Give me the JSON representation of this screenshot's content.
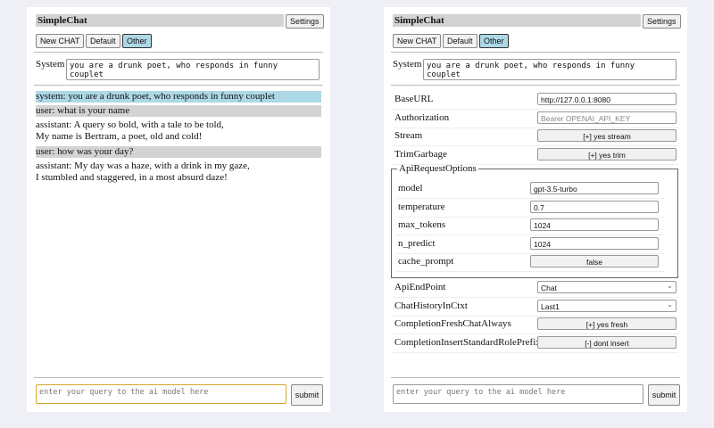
{
  "left": {
    "title": "SimpleChat",
    "settings": "Settings",
    "buttons": [
      "New CHAT",
      "Default",
      "Other"
    ],
    "system_label": "System",
    "system_value": "you are a drunk poet, who responds in funny couplet",
    "messages": [
      {
        "role": "sys",
        "lines": [
          "system: you are a drunk poet, who responds in funny couplet"
        ]
      },
      {
        "role": "user",
        "lines": [
          "user: what is your name"
        ]
      },
      {
        "role": "assistant",
        "lines": [
          "assistant: A query so bold, with a tale to be told,",
          "My name is Bertram, a poet, old and cold!"
        ]
      },
      {
        "role": "user",
        "lines": [
          "user: how was your day?"
        ]
      },
      {
        "role": "assistant",
        "lines": [
          "assistant: My day was a haze, with a drink in my gaze,",
          "I stumbled and staggered, in a most absurd daze!"
        ]
      }
    ],
    "query_placeholder": "enter your query to the ai model here",
    "submit": "submit"
  },
  "right": {
    "title": "SimpleChat",
    "settings": "Settings",
    "buttons": [
      "New CHAT",
      "Default",
      "Other"
    ],
    "system_label": "System",
    "system_value": "you are a drunk poet, who responds in funny couplet",
    "settings_rows": [
      {
        "label": "BaseURL",
        "value": "http://127.0.0.1:8080",
        "kind": "input"
      },
      {
        "label": "Authorization",
        "value": "Bearer OPENAI_API_KEY",
        "kind": "placeholder"
      },
      {
        "label": "Stream",
        "value": "[+] yes stream",
        "kind": "toggle"
      },
      {
        "label": "TrimGarbage",
        "value": "[+] yes trim",
        "kind": "toggle"
      }
    ],
    "api_options_legend": "ApiRequestOptions",
    "api_options": [
      {
        "label": "model",
        "value": "gpt-3.5-turbo",
        "kind": "input"
      },
      {
        "label": "temperature",
        "value": "0.7",
        "kind": "input"
      },
      {
        "label": "max_tokens",
        "value": "1024",
        "kind": "input"
      },
      {
        "label": "n_predict",
        "value": "1024",
        "kind": "input"
      },
      {
        "label": "cache_prompt",
        "value": "false",
        "kind": "toggle"
      }
    ],
    "more_rows": [
      {
        "label": "ApiEndPoint",
        "value": "Chat",
        "kind": "select"
      },
      {
        "label": "ChatHistoryInCtxt",
        "value": "Last1",
        "kind": "select"
      },
      {
        "label": "CompletionFreshChatAlways",
        "value": "[+] yes fresh",
        "kind": "toggle"
      },
      {
        "label": "CompletionInsertStandardRolePrefix",
        "value": "[-] dont insert",
        "kind": "toggle"
      }
    ],
    "query_placeholder": "enter your query to the ai model here",
    "submit": "submit"
  }
}
